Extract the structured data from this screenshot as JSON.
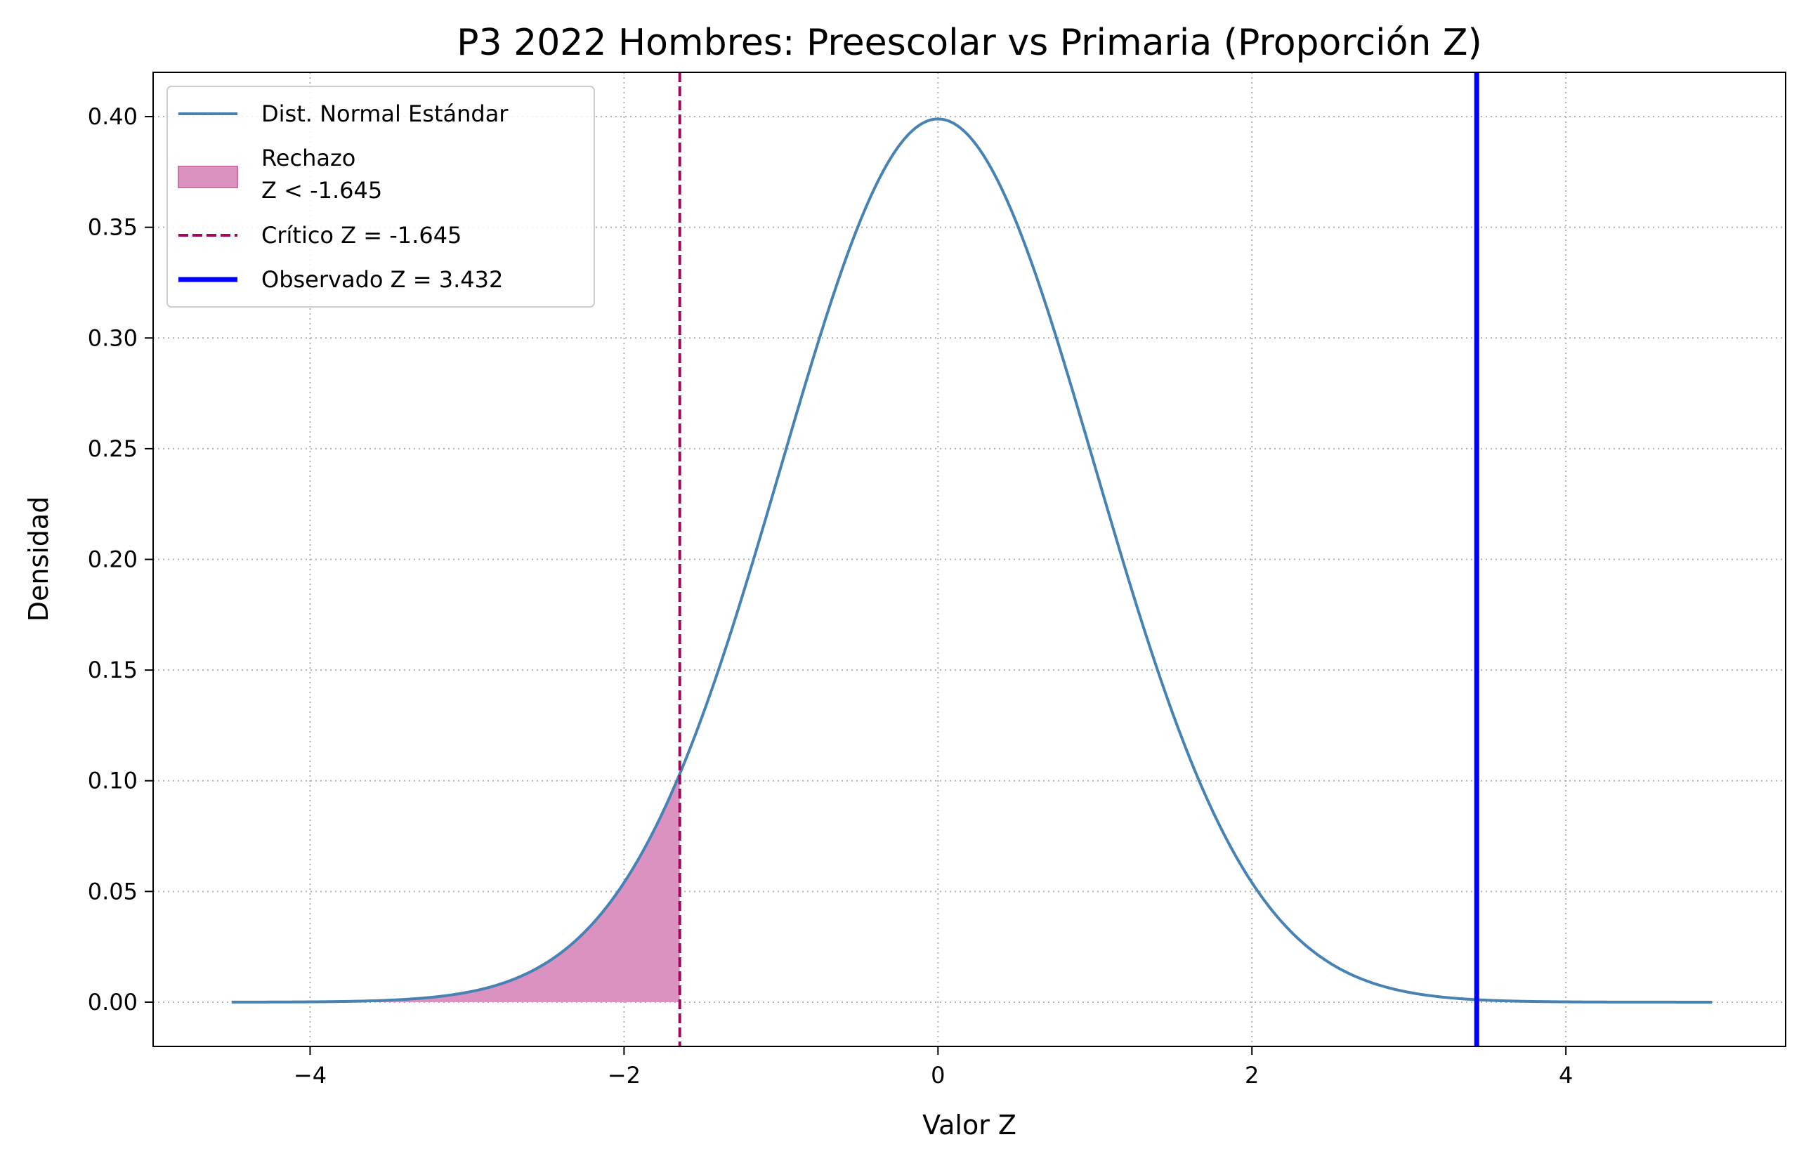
{
  "chart_data": {
    "type": "line",
    "title": "P3 2022 Hombres: Preescolar vs Primaria (Proporción Z)",
    "xlabel": "Valor Z",
    "ylabel": "Densidad",
    "xlim": [
      -5.0,
      5.4
    ],
    "ylim": [
      -0.02,
      0.42
    ],
    "x_ticks": [
      -4,
      -2,
      0,
      2,
      4
    ],
    "x_tick_labels": [
      "−4",
      "−2",
      "0",
      "2",
      "4"
    ],
    "y_ticks": [
      0.0,
      0.05,
      0.1,
      0.15,
      0.2,
      0.25,
      0.3,
      0.35,
      0.4
    ],
    "y_tick_labels": [
      "0.00",
      "0.05",
      "0.10",
      "0.15",
      "0.20",
      "0.25",
      "0.30",
      "0.35",
      "0.40"
    ],
    "grid": true,
    "legend_position": "top-left",
    "series": [
      {
        "name": "Dist. Normal Estándar",
        "kind": "curve",
        "color": "#4682b4",
        "x_range": [
          -4.5,
          4.93
        ],
        "x": [
          -4.5,
          -4.0,
          -3.5,
          -3.0,
          -2.5,
          -2.0,
          -1.645,
          -1.5,
          -1.0,
          -0.5,
          0.0,
          0.5,
          1.0,
          1.5,
          2.0,
          2.5,
          3.0,
          3.5,
          4.0,
          4.5,
          4.93
        ],
        "y": [
          0.0,
          0.0001,
          0.0009,
          0.0044,
          0.0175,
          0.054,
          0.1031,
          0.1295,
          0.242,
          0.3521,
          0.3989,
          0.3521,
          0.242,
          0.1295,
          0.054,
          0.0175,
          0.0044,
          0.0009,
          0.0001,
          0.0,
          0.0
        ]
      },
      {
        "name": "Rechazo\nZ < -1.645",
        "name_lines": [
          "Rechazo",
          "Z < -1.645"
        ],
        "kind": "area",
        "color": "#db92c0",
        "x_range": [
          -4.5,
          -1.645
        ]
      },
      {
        "name": "Crítico Z = -1.645",
        "kind": "vline",
        "color": "#a0085f",
        "x": -1.645
      },
      {
        "name": "Observado Z = 3.432",
        "kind": "vline",
        "color": "#0000ff",
        "x": 3.432
      }
    ]
  }
}
